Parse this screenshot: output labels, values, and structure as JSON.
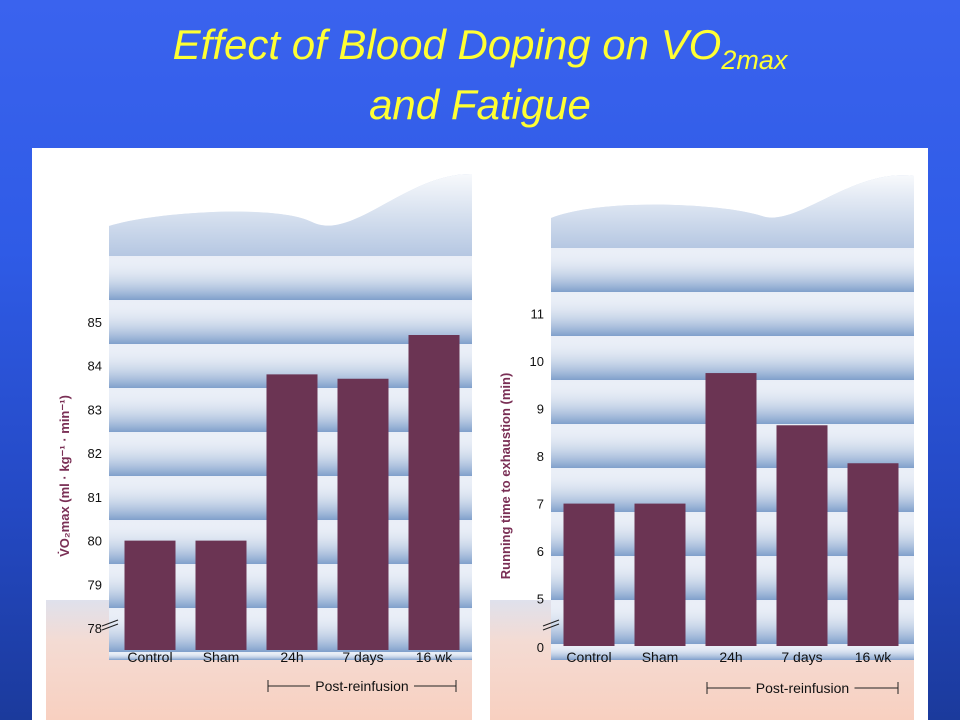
{
  "title": {
    "line1_main": "Effect of Blood Doping on VO",
    "line1_sub": "2max",
    "line2": "and Fatigue"
  },
  "colors": {
    "background": "#2f5be6",
    "title": "#ffff33",
    "bar": "#6b3453",
    "axis_label": "#7a2f55",
    "panel_band": "#87a8d0",
    "panel_floor": "#f8d6c8"
  },
  "chart_data": [
    {
      "type": "bar",
      "categories": [
        "Control",
        "Sham",
        "24h",
        "7 days",
        "16 wk"
      ],
      "values": [
        80.0,
        80.0,
        83.8,
        83.7,
        84.7
      ],
      "ylabel": "V̇O₂max (ml · kg⁻¹ · min⁻¹)",
      "yticks": [
        "78",
        "79",
        "80",
        "81",
        "82",
        "83",
        "84",
        "85"
      ],
      "ylim": [
        77.5,
        85.5
      ],
      "axis_break": true,
      "group_label": "Post-reinfusion",
      "group_categories": [
        "24h",
        "7 days",
        "16 wk"
      ]
    },
    {
      "type": "bar",
      "categories": [
        "Control",
        "Sham",
        "24h",
        "7 days",
        "16 wk"
      ],
      "values": [
        7.0,
        7.0,
        9.75,
        8.65,
        7.85
      ],
      "ylabel": "Running time to exhaustion (min)",
      "yticks": [
        "0",
        "5",
        "6",
        "7",
        "8",
        "9",
        "10",
        "11"
      ],
      "ytick_values": [
        4,
        5,
        6,
        7,
        8,
        9,
        10,
        11
      ],
      "ylim": [
        4,
        11.5
      ],
      "axis_break": true,
      "group_label": "Post-reinfusion",
      "group_categories": [
        "24h",
        "7 days",
        "16 wk"
      ]
    }
  ]
}
